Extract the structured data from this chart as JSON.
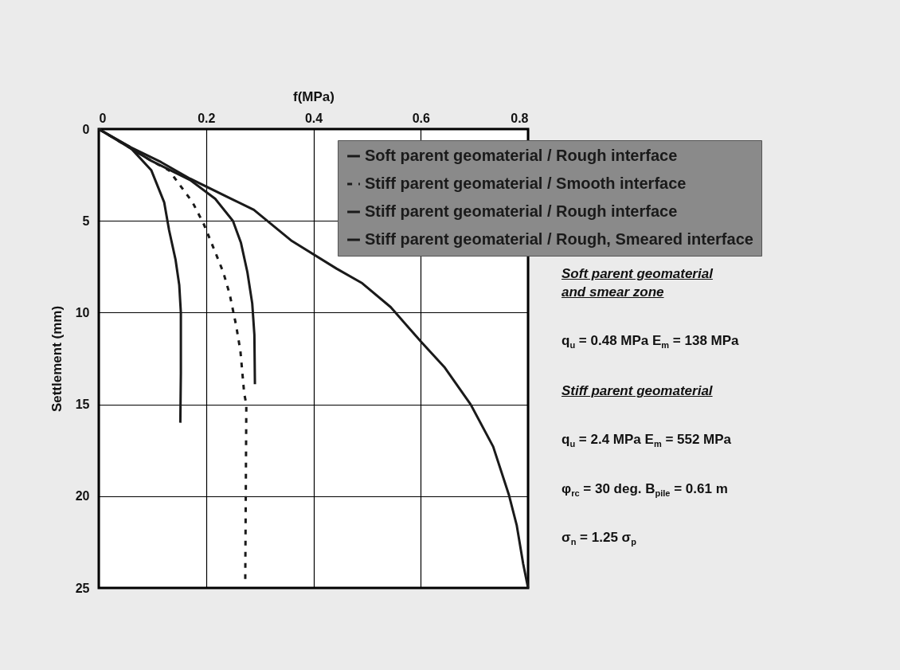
{
  "chart_data": {
    "type": "line",
    "xlabel": "f(MPa)",
    "ylabel": "Settlement (mm)",
    "xlim": [
      0,
      0.8
    ],
    "xticks": [
      0,
      0.2,
      0.4,
      0.6,
      0.8
    ],
    "ylim": [
      25,
      0
    ],
    "yticks": [
      0,
      5,
      10,
      15,
      20,
      25
    ],
    "grid": true,
    "legend": "top right",
    "marker": "none",
    "series": [
      {
        "name": "Soft parent geomaterial / Rough interface",
        "color": "#1a1a1a",
        "line_style": "solid",
        "x": [
          0,
          0.057,
          0.098,
          0.122,
          0.131,
          0.143,
          0.15,
          0.153,
          0.153,
          0.152
        ],
        "values": [
          0,
          0.95,
          2.25,
          4.0,
          5.5,
          7.1,
          8.5,
          10,
          13.3,
          16
        ]
      },
      {
        "name": "Stiff parent geomaterial / Smooth interface",
        "color": "#1a1a1a",
        "line_style": "dashed",
        "x": [
          0,
          0.098,
          0.131,
          0.175,
          0.196,
          0.217,
          0.232,
          0.244,
          0.256,
          0.264,
          0.271,
          0.275,
          0.273
        ],
        "values": [
          0,
          1.73,
          2.25,
          4.0,
          5.2,
          6.7,
          7.8,
          9.0,
          10.7,
          12.1,
          14.4,
          15.0,
          24.6
        ]
      },
      {
        "name": "Stiff parent geomaterial / Rough interface",
        "color": "#1a1a1a",
        "line_style": "solid",
        "x": [
          0,
          0.051,
          0.116,
          0.17,
          0.247,
          0.289,
          0.36,
          0.443,
          0.491,
          0.544,
          0.601,
          0.645,
          0.693,
          0.735,
          0.764,
          0.779,
          0.791,
          0.8
        ],
        "values": [
          0,
          0.87,
          1.8,
          2.7,
          3.8,
          4.4,
          6.1,
          7.6,
          8.4,
          9.7,
          11.6,
          13.0,
          15.0,
          17.3,
          19.9,
          21.6,
          23.7,
          25
        ]
      },
      {
        "name": "Stiff parent geomaterial / Rough, Smeared interface",
        "color": "#1a1a1a",
        "line_style": "solid",
        "x": [
          0,
          0.098,
          0.17,
          0.217,
          0.25,
          0.265,
          0.277,
          0.286,
          0.29,
          0.291
        ],
        "values": [
          0,
          1.73,
          2.77,
          3.8,
          5.0,
          6.2,
          7.8,
          9.5,
          11.2,
          13.9
        ]
      }
    ],
    "annotations": [
      "Soft parent geomaterial and smear zone",
      "q$_{u}$ = 0.48 MPa  E$_{m}$ = 138 MPa",
      "Stiff parent geomaterial",
      "q$_{u}$ = 2.4 MPa   E$_{m}$ = 552 MPa",
      "φ$_{rc}$ = 30 deg.   B$_{pile}$ = 0.61 m",
      "σ$_{n}$ = 1.25 σ$_{p}$"
    ]
  }
}
